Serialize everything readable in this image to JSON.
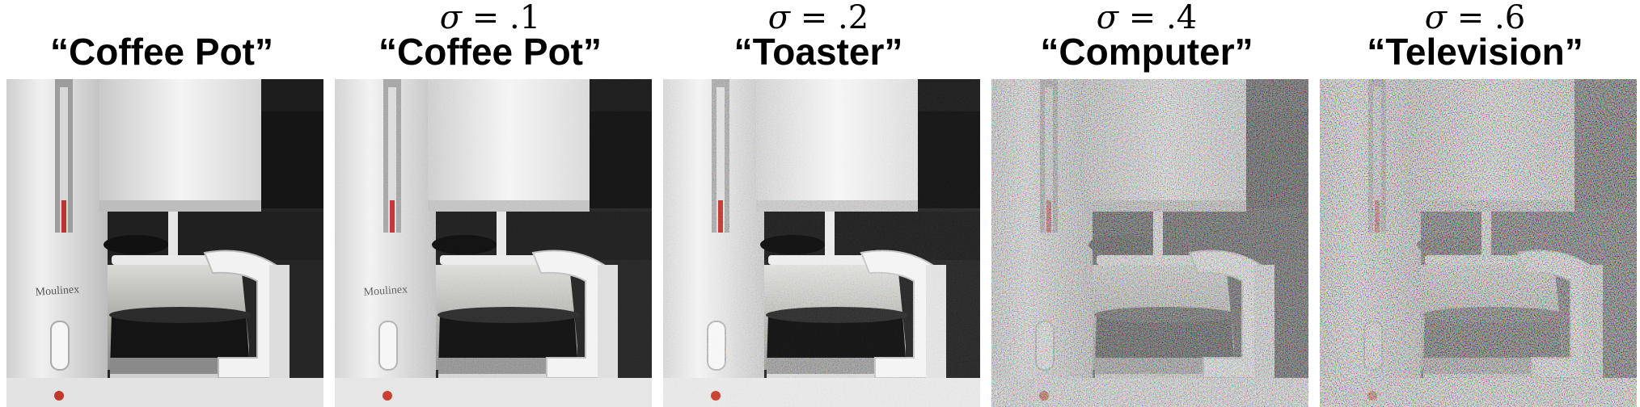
{
  "panels": [
    {
      "sigma_symbol": "",
      "sigma_value": "",
      "label": "“Coffee Pot”",
      "noise_level": 0.0
    },
    {
      "sigma_symbol": "σ",
      "sigma_value": " = .1",
      "label": "“Coffee Pot”",
      "noise_level": 0.1
    },
    {
      "sigma_symbol": "σ",
      "sigma_value": " = .2",
      "label": "“Toaster”",
      "noise_level": 0.2
    },
    {
      "sigma_symbol": "σ",
      "sigma_value": " = .4",
      "label": "“Computer”",
      "noise_level": 0.4
    },
    {
      "sigma_symbol": "σ",
      "sigma_value": " = .6",
      "label": "“Television”",
      "noise_level": 0.6
    }
  ],
  "image_subject": "coffee-maker-photo",
  "brand_text": "Moulinex"
}
